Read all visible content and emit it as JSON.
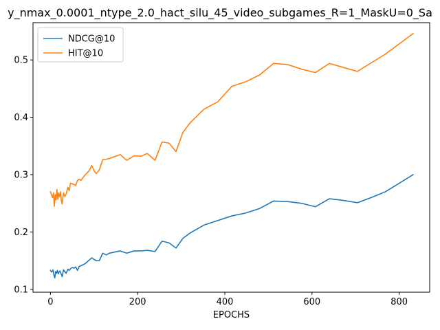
{
  "chart_data": {
    "type": "line",
    "title": "y_nmax_0.0001_ntype_2.0_hact_silu_45_video_subgames_R=1_MaskU=0_Sa",
    "xlabel": "EPOCHS",
    "ylabel": "",
    "xlim": [
      -40,
      870
    ],
    "ylim": [
      0.095,
      0.565
    ],
    "xticks": [
      0,
      200,
      400,
      600,
      800
    ],
    "yticks": [
      0.1,
      0.2,
      0.3,
      0.4,
      0.5
    ],
    "grid": false,
    "legend": "upper left",
    "series": [
      {
        "name": "NDCG@10",
        "color": "#1f77b4",
        "points": [
          [
            0,
            0.133
          ],
          [
            3,
            0.13
          ],
          [
            6,
            0.134
          ],
          [
            8,
            0.125
          ],
          [
            10,
            0.12
          ],
          [
            12,
            0.131
          ],
          [
            14,
            0.128
          ],
          [
            16,
            0.133
          ],
          [
            18,
            0.127
          ],
          [
            20,
            0.13
          ],
          [
            22,
            0.132
          ],
          [
            25,
            0.126
          ],
          [
            27,
            0.122
          ],
          [
            30,
            0.134
          ],
          [
            33,
            0.131
          ],
          [
            36,
            0.128
          ],
          [
            40,
            0.135
          ],
          [
            43,
            0.133
          ],
          [
            46,
            0.136
          ],
          [
            50,
            0.138
          ],
          [
            54,
            0.137
          ],
          [
            58,
            0.139
          ],
          [
            62,
            0.133
          ],
          [
            66,
            0.14
          ],
          [
            70,
            0.141
          ],
          [
            80,
            0.145
          ],
          [
            95,
            0.155
          ],
          [
            100,
            0.152
          ],
          [
            105,
            0.15
          ],
          [
            112,
            0.15
          ],
          [
            120,
            0.163
          ],
          [
            128,
            0.16
          ],
          [
            135,
            0.163
          ],
          [
            160,
            0.167
          ],
          [
            175,
            0.163
          ],
          [
            192,
            0.167
          ],
          [
            208,
            0.167
          ],
          [
            222,
            0.168
          ],
          [
            240,
            0.166
          ],
          [
            256,
            0.184
          ],
          [
            272,
            0.181
          ],
          [
            288,
            0.172
          ],
          [
            304,
            0.189
          ],
          [
            320,
            0.198
          ],
          [
            352,
            0.212
          ],
          [
            384,
            0.22
          ],
          [
            416,
            0.228
          ],
          [
            448,
            0.233
          ],
          [
            480,
            0.241
          ],
          [
            512,
            0.254
          ],
          [
            544,
            0.253
          ],
          [
            576,
            0.25
          ],
          [
            608,
            0.244
          ],
          [
            640,
            0.258
          ],
          [
            672,
            0.255
          ],
          [
            704,
            0.251
          ],
          [
            736,
            0.26
          ],
          [
            768,
            0.27
          ],
          [
            800,
            0.285
          ],
          [
            832,
            0.3
          ]
        ]
      },
      {
        "name": "HIT@10",
        "color": "#ff7f0e",
        "points": [
          [
            0,
            0.27
          ],
          [
            3,
            0.264
          ],
          [
            5,
            0.26
          ],
          [
            7,
            0.268
          ],
          [
            9,
            0.245
          ],
          [
            11,
            0.265
          ],
          [
            13,
            0.256
          ],
          [
            15,
            0.274
          ],
          [
            17,
            0.257
          ],
          [
            19,
            0.268
          ],
          [
            21,
            0.262
          ],
          [
            23,
            0.27
          ],
          [
            25,
            0.255
          ],
          [
            27,
            0.249
          ],
          [
            30,
            0.268
          ],
          [
            33,
            0.262
          ],
          [
            36,
            0.266
          ],
          [
            40,
            0.278
          ],
          [
            43,
            0.272
          ],
          [
            46,
            0.285
          ],
          [
            50,
            0.284
          ],
          [
            54,
            0.283
          ],
          [
            58,
            0.281
          ],
          [
            62,
            0.29
          ],
          [
            66,
            0.292
          ],
          [
            70,
            0.29
          ],
          [
            80,
            0.3
          ],
          [
            88,
            0.306
          ],
          [
            95,
            0.316
          ],
          [
            100,
            0.307
          ],
          [
            105,
            0.302
          ],
          [
            112,
            0.308
          ],
          [
            120,
            0.326
          ],
          [
            128,
            0.327
          ],
          [
            135,
            0.328
          ],
          [
            160,
            0.335
          ],
          [
            175,
            0.325
          ],
          [
            192,
            0.333
          ],
          [
            208,
            0.332
          ],
          [
            222,
            0.337
          ],
          [
            240,
            0.325
          ],
          [
            256,
            0.357
          ],
          [
            272,
            0.355
          ],
          [
            288,
            0.34
          ],
          [
            304,
            0.374
          ],
          [
            320,
            0.39
          ],
          [
            352,
            0.414
          ],
          [
            384,
            0.427
          ],
          [
            416,
            0.454
          ],
          [
            448,
            0.462
          ],
          [
            480,
            0.474
          ],
          [
            512,
            0.494
          ],
          [
            544,
            0.492
          ],
          [
            576,
            0.484
          ],
          [
            608,
            0.478
          ],
          [
            640,
            0.494
          ],
          [
            672,
            0.487
          ],
          [
            704,
            0.48
          ],
          [
            736,
            0.495
          ],
          [
            768,
            0.51
          ],
          [
            800,
            0.528
          ],
          [
            832,
            0.546
          ]
        ]
      }
    ]
  }
}
